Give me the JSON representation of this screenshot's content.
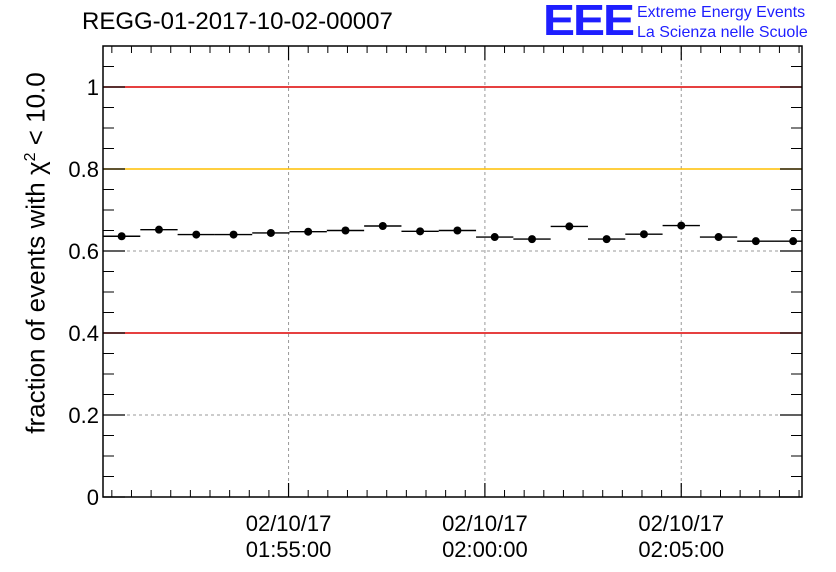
{
  "chart_data": {
    "type": "scatter",
    "title": "REGG-01-2017-10-02-00007",
    "ylabel_prefix": "fraction of events with ",
    "ylabel_chi": "χ",
    "ylabel_sup": "2",
    "ylabel_suffix": " < 10.0",
    "xlabel": "",
    "x_range_min": [
      0,
      35.6
    ],
    "ylim": [
      0,
      1.1
    ],
    "y_ticks": [
      {
        "value": 0,
        "label": "0"
      },
      {
        "value": 0.2,
        "label": "0.2"
      },
      {
        "value": 0.4,
        "label": "0.4"
      },
      {
        "value": 0.6,
        "label": "0.6"
      },
      {
        "value": 0.8,
        "label": "0.8"
      },
      {
        "value": 1.0,
        "label": "1"
      }
    ],
    "x_ticks": [
      {
        "value": 9.45,
        "date": "02/10/17",
        "time": "01:55:00"
      },
      {
        "value": 19.45,
        "date": "02/10/17",
        "time": "02:00:00"
      },
      {
        "value": 29.45,
        "date": "02/10/17",
        "time": "02:05:00"
      }
    ],
    "bin_width_min": 1.9,
    "reference_lines": [
      {
        "value": 1.0,
        "color": "#dd0000"
      },
      {
        "value": 0.8,
        "color": "#ffbf00"
      },
      {
        "value": 0.4,
        "color": "#dd0000"
      }
    ],
    "series": [
      {
        "name": "fraction",
        "x": [
          0.95,
          2.85,
          4.75,
          6.65,
          8.55,
          10.45,
          12.35,
          14.25,
          16.15,
          18.05,
          19.95,
          21.85,
          23.75,
          25.65,
          27.55,
          29.45,
          31.35,
          33.25,
          35.15
        ],
        "y": [
          0.636,
          0.652,
          0.64,
          0.64,
          0.644,
          0.647,
          0.65,
          0.661,
          0.648,
          0.65,
          0.634,
          0.629,
          0.66,
          0.629,
          0.641,
          0.662,
          0.634,
          0.624,
          0.624
        ]
      }
    ]
  },
  "logo": {
    "mark": "EEE",
    "line1": "Extreme Energy Events",
    "line2": "La Scienza nelle Scuole"
  }
}
